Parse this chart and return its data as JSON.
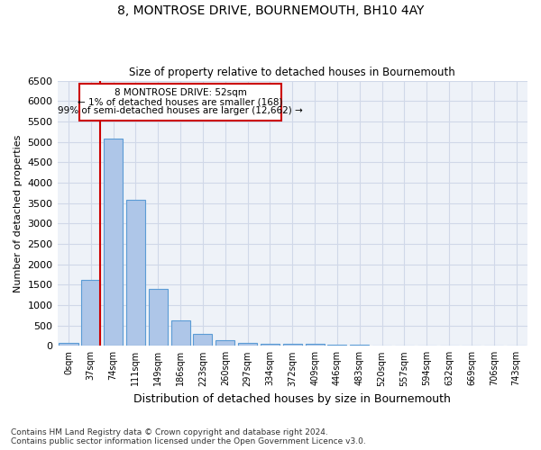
{
  "title": "8, MONTROSE DRIVE, BOURNEMOUTH, BH10 4AY",
  "subtitle": "Size of property relative to detached houses in Bournemouth",
  "xlabel": "Distribution of detached houses by size in Bournemouth",
  "ylabel": "Number of detached properties",
  "footer_line1": "Contains HM Land Registry data © Crown copyright and database right 2024.",
  "footer_line2": "Contains public sector information licensed under the Open Government Licence v3.0.",
  "bar_labels": [
    "0sqm",
    "37sqm",
    "74sqm",
    "111sqm",
    "149sqm",
    "186sqm",
    "223sqm",
    "260sqm",
    "297sqm",
    "334sqm",
    "372sqm",
    "409sqm",
    "446sqm",
    "483sqm",
    "520sqm",
    "557sqm",
    "594sqm",
    "632sqm",
    "669sqm",
    "706sqm",
    "743sqm"
  ],
  "bar_values": [
    75,
    1625,
    5075,
    3575,
    1400,
    625,
    300,
    140,
    80,
    60,
    50,
    45,
    35,
    20,
    10,
    8,
    5,
    5,
    3,
    3,
    3
  ],
  "bar_color": "#aec6e8",
  "bar_edge_color": "#5b9bd5",
  "grid_color": "#d0d8e8",
  "background_color": "#eef2f8",
  "annotation_text_line1": "8 MONTROSE DRIVE: 52sqm",
  "annotation_text_line2": "← 1% of detached houses are smaller (168)",
  "annotation_text_line3": "99% of semi-detached houses are larger (12,662) →",
  "ylim": [
    0,
    6500
  ],
  "yticks": [
    0,
    500,
    1000,
    1500,
    2000,
    2500,
    3000,
    3500,
    4000,
    4500,
    5000,
    5500,
    6000,
    6500
  ]
}
